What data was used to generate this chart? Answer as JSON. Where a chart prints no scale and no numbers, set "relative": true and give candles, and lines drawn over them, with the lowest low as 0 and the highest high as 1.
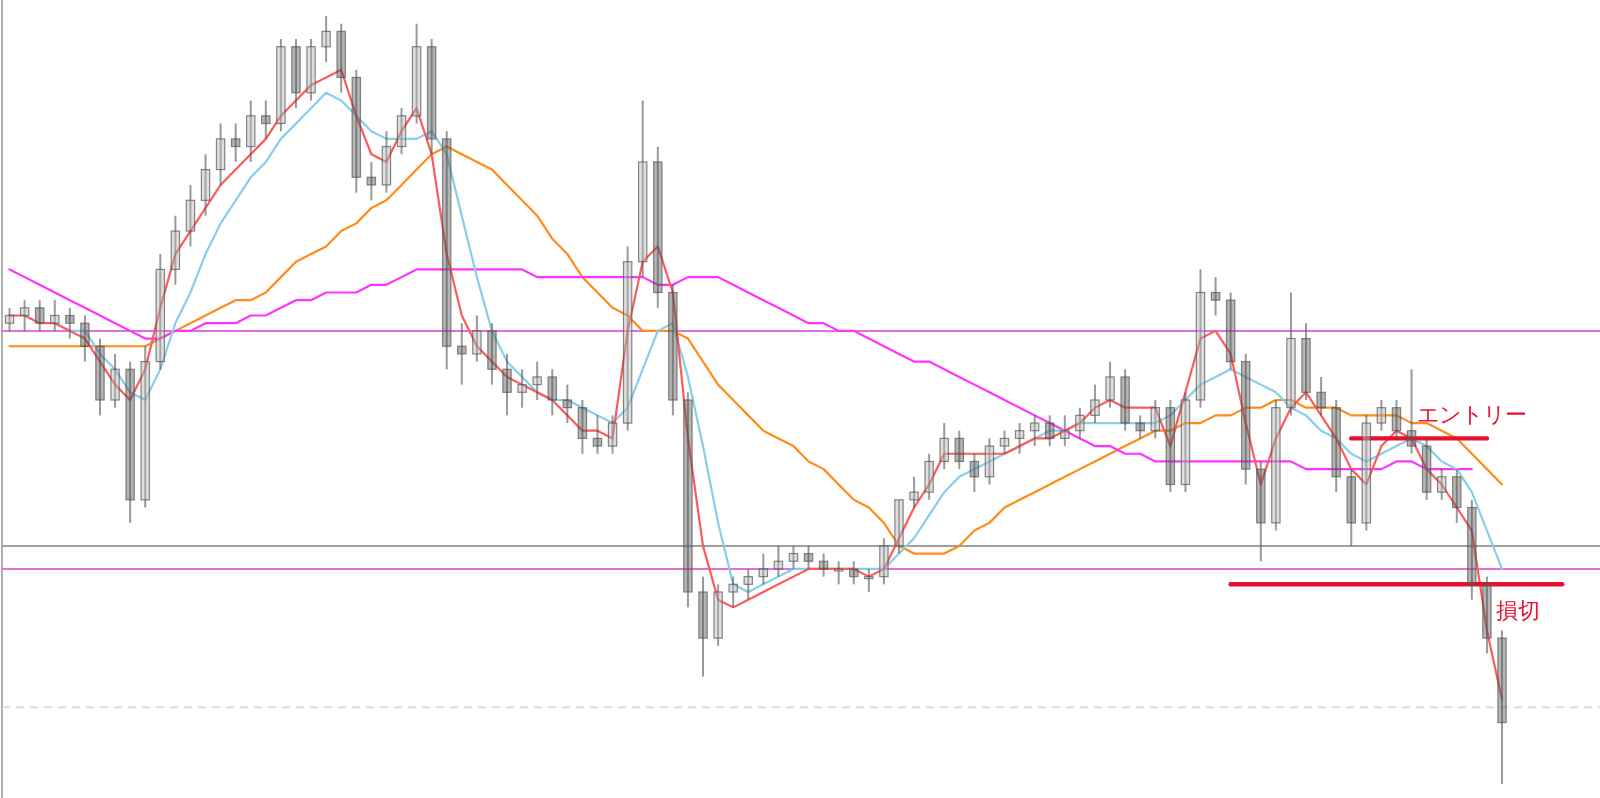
{
  "chart_data": {
    "type": "candlestick",
    "relative": true,
    "categories": [
      null,
      null,
      null,
      null,
      null,
      null,
      null,
      null,
      null,
      null,
      null,
      null,
      null,
      null,
      null,
      null,
      null,
      null,
      null,
      null,
      null,
      null,
      null,
      null,
      null,
      null,
      null,
      null,
      null,
      null,
      null,
      null,
      null,
      null,
      null,
      null,
      null,
      null,
      null,
      null,
      null,
      null,
      null,
      null,
      null,
      null,
      null,
      null,
      null,
      null,
      null,
      null,
      null,
      null,
      null,
      null,
      null,
      null,
      null,
      null,
      null,
      null,
      null,
      null,
      null,
      null,
      null,
      null,
      null,
      null,
      null,
      null,
      null,
      null,
      null,
      null,
      null,
      null,
      null,
      null,
      null,
      null,
      null,
      null,
      null,
      null,
      null,
      null,
      null,
      null,
      null,
      null,
      null,
      null,
      null,
      null,
      null,
      null,
      null,
      null,
      null,
      null,
      null,
      null,
      null,
      null
    ],
    "ohlc": [
      [
        0.6,
        0.62,
        0.59,
        0.61
      ],
      [
        0.61,
        0.63,
        0.59,
        0.62
      ],
      [
        0.62,
        0.63,
        0.59,
        0.6
      ],
      [
        0.6,
        0.63,
        0.59,
        0.61
      ],
      [
        0.61,
        0.62,
        0.58,
        0.6
      ],
      [
        0.6,
        0.61,
        0.55,
        0.57
      ],
      [
        0.57,
        0.58,
        0.48,
        0.5
      ],
      [
        0.5,
        0.56,
        0.49,
        0.54
      ],
      [
        0.54,
        0.55,
        0.34,
        0.37
      ],
      [
        0.37,
        0.57,
        0.36,
        0.55
      ],
      [
        0.55,
        0.69,
        0.54,
        0.67
      ],
      [
        0.67,
        0.74,
        0.65,
        0.72
      ],
      [
        0.72,
        0.78,
        0.7,
        0.76
      ],
      [
        0.76,
        0.82,
        0.74,
        0.8
      ],
      [
        0.8,
        0.86,
        0.78,
        0.84
      ],
      [
        0.84,
        0.86,
        0.81,
        0.83
      ],
      [
        0.83,
        0.89,
        0.81,
        0.87
      ],
      [
        0.87,
        0.89,
        0.84,
        0.86
      ],
      [
        0.86,
        0.97,
        0.85,
        0.96
      ],
      [
        0.96,
        0.97,
        0.88,
        0.9
      ],
      [
        0.9,
        0.97,
        0.89,
        0.96
      ],
      [
        0.96,
        1.0,
        0.94,
        0.98
      ],
      [
        0.98,
        0.99,
        0.9,
        0.92
      ],
      [
        0.92,
        0.93,
        0.77,
        0.79
      ],
      [
        0.79,
        0.81,
        0.76,
        0.78
      ],
      [
        0.78,
        0.85,
        0.77,
        0.83
      ],
      [
        0.83,
        0.88,
        0.82,
        0.87
      ],
      [
        0.87,
        0.99,
        0.86,
        0.96
      ],
      [
        0.96,
        0.97,
        0.82,
        0.84
      ],
      [
        0.84,
        0.85,
        0.54,
        0.57
      ],
      [
        0.57,
        0.6,
        0.52,
        0.56
      ],
      [
        0.56,
        0.61,
        0.55,
        0.59
      ],
      [
        0.59,
        0.6,
        0.52,
        0.54
      ],
      [
        0.54,
        0.56,
        0.48,
        0.51
      ],
      [
        0.51,
        0.54,
        0.49,
        0.52
      ],
      [
        0.52,
        0.55,
        0.5,
        0.53
      ],
      [
        0.53,
        0.54,
        0.48,
        0.5
      ],
      [
        0.5,
        0.52,
        0.47,
        0.49
      ],
      [
        0.49,
        0.5,
        0.43,
        0.45
      ],
      [
        0.45,
        0.48,
        0.43,
        0.44
      ],
      [
        0.44,
        0.48,
        0.43,
        0.47
      ],
      [
        0.47,
        0.7,
        0.46,
        0.68
      ],
      [
        0.68,
        0.89,
        0.66,
        0.81
      ],
      [
        0.81,
        0.83,
        0.62,
        0.64
      ],
      [
        0.64,
        0.65,
        0.48,
        0.5
      ],
      [
        0.5,
        0.51,
        0.23,
        0.25
      ],
      [
        0.25,
        0.27,
        0.14,
        0.19
      ],
      [
        0.19,
        0.26,
        0.18,
        0.25
      ],
      [
        0.25,
        0.27,
        0.23,
        0.26
      ],
      [
        0.26,
        0.28,
        0.24,
        0.27
      ],
      [
        0.27,
        0.3,
        0.26,
        0.28
      ],
      [
        0.28,
        0.31,
        0.27,
        0.29
      ],
      [
        0.29,
        0.31,
        0.28,
        0.3
      ],
      [
        0.3,
        0.31,
        0.28,
        0.29
      ],
      [
        0.29,
        0.3,
        0.27,
        0.28
      ],
      [
        0.28,
        0.29,
        0.26,
        0.28
      ],
      [
        0.28,
        0.29,
        0.26,
        0.27
      ],
      [
        0.27,
        0.28,
        0.25,
        0.27
      ],
      [
        0.27,
        0.32,
        0.26,
        0.31
      ],
      [
        0.31,
        0.37,
        0.3,
        0.37
      ],
      [
        0.37,
        0.4,
        0.36,
        0.38
      ],
      [
        0.38,
        0.43,
        0.37,
        0.42
      ],
      [
        0.42,
        0.47,
        0.41,
        0.45
      ],
      [
        0.45,
        0.46,
        0.41,
        0.42
      ],
      [
        0.42,
        0.43,
        0.38,
        0.4
      ],
      [
        0.4,
        0.45,
        0.39,
        0.44
      ],
      [
        0.44,
        0.46,
        0.43,
        0.45
      ],
      [
        0.45,
        0.47,
        0.43,
        0.46
      ],
      [
        0.46,
        0.48,
        0.44,
        0.47
      ],
      [
        0.47,
        0.48,
        0.44,
        0.45
      ],
      [
        0.45,
        0.48,
        0.44,
        0.46
      ],
      [
        0.46,
        0.49,
        0.45,
        0.48
      ],
      [
        0.48,
        0.52,
        0.47,
        0.5
      ],
      [
        0.5,
        0.55,
        0.49,
        0.53
      ],
      [
        0.53,
        0.54,
        0.46,
        0.47
      ],
      [
        0.47,
        0.48,
        0.45,
        0.46
      ],
      [
        0.46,
        0.5,
        0.45,
        0.49
      ],
      [
        0.49,
        0.5,
        0.38,
        0.39
      ],
      [
        0.39,
        0.51,
        0.38,
        0.5
      ],
      [
        0.5,
        0.67,
        0.49,
        0.64
      ],
      [
        0.64,
        0.66,
        0.61,
        0.63
      ],
      [
        0.63,
        0.64,
        0.54,
        0.55
      ],
      [
        0.55,
        0.56,
        0.39,
        0.41
      ],
      [
        0.41,
        0.42,
        0.29,
        0.34
      ],
      [
        0.34,
        0.5,
        0.33,
        0.49
      ],
      [
        0.49,
        0.64,
        0.48,
        0.58
      ],
      [
        0.58,
        0.6,
        0.5,
        0.51
      ],
      [
        0.51,
        0.53,
        0.48,
        0.49
      ],
      [
        0.49,
        0.5,
        0.38,
        0.4
      ],
      [
        0.4,
        0.41,
        0.31,
        0.34
      ],
      [
        0.34,
        0.48,
        0.33,
        0.47
      ],
      [
        0.47,
        0.5,
        0.46,
        0.49
      ],
      [
        0.49,
        0.5,
        0.45,
        0.46
      ],
      [
        0.46,
        0.54,
        0.43,
        0.44
      ],
      [
        0.44,
        0.45,
        0.37,
        0.38
      ],
      [
        0.38,
        0.41,
        0.37,
        0.4
      ],
      [
        0.4,
        0.41,
        0.34,
        0.36
      ],
      [
        0.36,
        0.37,
        0.24,
        0.26
      ],
      [
        0.26,
        0.27,
        0.17,
        0.19
      ],
      [
        0.19,
        0.2,
        0.0,
        0.08
      ],
      null,
      null,
      null,
      null,
      null,
      null
    ],
    "series": [
      {
        "type": "line",
        "color": "#ff8c1a",
        "values": [
          0.57,
          0.57,
          0.57,
          0.57,
          0.57,
          0.57,
          0.57,
          0.57,
          0.57,
          0.57,
          0.58,
          0.59,
          0.6,
          0.61,
          0.62,
          0.63,
          0.63,
          0.64,
          0.66,
          0.68,
          0.69,
          0.7,
          0.72,
          0.73,
          0.75,
          0.76,
          0.78,
          0.8,
          0.82,
          0.83,
          0.82,
          0.81,
          0.8,
          0.78,
          0.76,
          0.74,
          0.71,
          0.69,
          0.66,
          0.64,
          0.62,
          0.61,
          0.59,
          0.59,
          0.59,
          0.58,
          0.55,
          0.52,
          0.5,
          0.48,
          0.46,
          0.45,
          0.44,
          0.42,
          0.41,
          0.39,
          0.37,
          0.36,
          0.34,
          0.31,
          0.3,
          0.3,
          0.3,
          0.31,
          0.33,
          0.34,
          0.36,
          0.37,
          0.38,
          0.39,
          0.4,
          0.41,
          0.42,
          0.43,
          0.44,
          0.45,
          0.46,
          0.46,
          0.47,
          0.47,
          0.48,
          0.48,
          0.49,
          0.49,
          0.5,
          0.5,
          0.49,
          0.49,
          0.49,
          0.48,
          0.48,
          0.48,
          0.48,
          0.47,
          0.47,
          0.46,
          0.45,
          0.43,
          0.41,
          0.39,
          null,
          null,
          null,
          null,
          null,
          null
        ]
      },
      {
        "type": "line",
        "color": "#ff33ff",
        "values": [
          0.67,
          0.66,
          0.65,
          0.64,
          0.63,
          0.62,
          0.61,
          0.6,
          0.59,
          0.58,
          0.58,
          0.59,
          0.59,
          0.6,
          0.6,
          0.6,
          0.61,
          0.61,
          0.62,
          0.63,
          0.63,
          0.64,
          0.64,
          0.64,
          0.65,
          0.65,
          0.66,
          0.67,
          0.67,
          0.67,
          0.67,
          0.67,
          0.67,
          0.67,
          0.67,
          0.66,
          0.66,
          0.66,
          0.66,
          0.66,
          0.66,
          0.66,
          0.66,
          0.65,
          0.65,
          0.66,
          0.66,
          0.66,
          0.65,
          0.64,
          0.63,
          0.62,
          0.61,
          0.6,
          0.6,
          0.59,
          0.59,
          0.58,
          0.57,
          0.56,
          0.55,
          0.55,
          0.54,
          0.53,
          0.52,
          0.51,
          0.5,
          0.49,
          0.48,
          0.47,
          0.46,
          0.45,
          0.44,
          0.44,
          0.43,
          0.43,
          0.42,
          0.42,
          0.42,
          0.42,
          0.42,
          0.42,
          0.42,
          0.42,
          0.42,
          0.42,
          0.41,
          0.41,
          0.41,
          0.41,
          0.41,
          0.41,
          0.42,
          0.42,
          0.41,
          0.41,
          0.41,
          0.41,
          null,
          null,
          null,
          null,
          null,
          null,
          null,
          null
        ]
      },
      {
        "type": "line",
        "color": "#87ceeb",
        "values": [
          null,
          null,
          null,
          0.6,
          0.59,
          0.59,
          0.56,
          0.54,
          0.51,
          0.5,
          0.54,
          0.6,
          0.64,
          0.69,
          0.73,
          0.76,
          0.79,
          0.81,
          0.84,
          0.86,
          0.88,
          0.9,
          0.89,
          0.87,
          0.85,
          0.84,
          0.84,
          0.84,
          0.85,
          0.82,
          0.74,
          0.66,
          0.59,
          0.55,
          0.53,
          0.51,
          0.5,
          0.5,
          0.49,
          0.48,
          0.47,
          0.49,
          0.54,
          0.59,
          0.6,
          0.53,
          0.44,
          0.34,
          0.26,
          0.25,
          0.26,
          0.27,
          0.28,
          0.28,
          0.28,
          0.28,
          0.28,
          0.28,
          0.28,
          0.3,
          0.32,
          0.35,
          0.38,
          0.4,
          0.41,
          0.42,
          0.43,
          0.44,
          0.45,
          0.46,
          0.46,
          0.47,
          0.47,
          0.47,
          0.47,
          0.47,
          0.47,
          0.48,
          0.5,
          0.52,
          0.53,
          0.54,
          0.53,
          0.52,
          0.51,
          0.49,
          0.48,
          0.46,
          0.45,
          0.43,
          0.42,
          0.43,
          0.44,
          0.45,
          0.44,
          0.42,
          0.41,
          0.38,
          0.33,
          0.28,
          null,
          null,
          null,
          null,
          null,
          null
        ]
      },
      {
        "type": "line",
        "color": "#ff5a5a",
        "values": [
          0.61,
          0.61,
          0.6,
          0.6,
          0.59,
          0.58,
          0.55,
          0.52,
          0.5,
          0.54,
          0.62,
          0.69,
          0.72,
          0.75,
          0.78,
          0.8,
          0.82,
          0.84,
          0.87,
          0.89,
          0.91,
          0.92,
          0.93,
          0.87,
          0.82,
          0.81,
          0.85,
          0.88,
          0.82,
          0.69,
          0.61,
          0.57,
          0.55,
          0.53,
          0.52,
          0.51,
          0.5,
          0.48,
          0.46,
          0.46,
          0.45,
          0.59,
          0.68,
          0.7,
          0.64,
          0.45,
          0.31,
          0.24,
          0.23,
          0.24,
          0.25,
          0.26,
          0.27,
          0.28,
          0.28,
          0.28,
          0.28,
          0.27,
          0.28,
          0.32,
          0.36,
          0.39,
          0.43,
          0.43,
          0.43,
          0.43,
          0.43,
          0.44,
          0.45,
          0.45,
          0.46,
          0.47,
          0.49,
          0.5,
          0.49,
          0.49,
          0.49,
          0.44,
          0.51,
          0.58,
          0.59,
          0.56,
          0.47,
          0.39,
          0.45,
          0.49,
          0.51,
          0.48,
          0.45,
          0.41,
          0.39,
          0.44,
          0.46,
          0.45,
          0.41,
          0.39,
          0.36,
          0.33,
          0.2,
          0.11,
          null,
          null,
          null,
          null,
          null,
          null
        ]
      },
      {
        "type": "line",
        "name": "エントリー",
        "color": "#e8102e",
        "values": [
          null,
          null,
          null,
          null,
          null,
          null,
          null,
          null,
          null,
          null,
          null,
          null,
          null,
          null,
          null,
          null,
          null,
          null,
          null,
          null,
          null,
          null,
          null,
          null,
          null,
          null,
          null,
          null,
          null,
          null,
          null,
          null,
          null,
          null,
          null,
          null,
          null,
          null,
          null,
          null,
          null,
          null,
          null,
          null,
          null,
          null,
          null,
          null,
          null,
          null,
          null,
          null,
          null,
          null,
          null,
          null,
          null,
          null,
          null,
          null,
          null,
          null,
          null,
          null,
          null,
          null,
          null,
          null,
          null,
          null,
          null,
          null,
          null,
          null,
          null,
          null,
          null,
          null,
          null,
          null,
          null,
          null,
          null,
          null,
          null,
          null,
          null,
          null,
          null,
          0.45,
          0.45,
          0.45,
          0.45,
          0.45,
          0.45,
          0.45,
          0.45,
          0.45,
          0.45,
          null,
          null,
          null,
          null,
          null,
          null,
          null
        ]
      },
      {
        "type": "line",
        "name": "損切",
        "color": "#e8102e",
        "values": [
          null,
          null,
          null,
          null,
          null,
          null,
          null,
          null,
          null,
          null,
          null,
          null,
          null,
          null,
          null,
          null,
          null,
          null,
          null,
          null,
          null,
          null,
          null,
          null,
          null,
          null,
          null,
          null,
          null,
          null,
          null,
          null,
          null,
          null,
          null,
          null,
          null,
          null,
          null,
          null,
          null,
          null,
          null,
          null,
          null,
          null,
          null,
          null,
          null,
          null,
          null,
          null,
          null,
          null,
          null,
          null,
          null,
          null,
          null,
          null,
          null,
          null,
          null,
          null,
          null,
          null,
          null,
          null,
          null,
          null,
          null,
          null,
          null,
          null,
          null,
          null,
          null,
          null,
          null,
          null,
          null,
          0.26,
          0.26,
          0.26,
          0.26,
          0.26,
          0.26,
          0.26,
          0.26,
          0.26,
          0.26,
          0.26,
          0.26,
          0.26,
          0.26,
          0.26,
          0.26,
          0.26,
          0.26,
          0.26,
          0.26,
          0.26,
          0.26,
          0.26,
          null,
          null
        ]
      }
    ],
    "ref_lines": [
      {
        "axis": "y",
        "value": 0.59,
        "color": "#e070e0"
      },
      {
        "axis": "y",
        "value": 0.31,
        "color": "#a0a0a0"
      },
      {
        "axis": "y",
        "value": 0.28,
        "color": "#e070e0"
      },
      {
        "axis": "y",
        "value": 0.1,
        "color": "#dcdcdc",
        "line_style": "dashed"
      }
    ]
  }
}
